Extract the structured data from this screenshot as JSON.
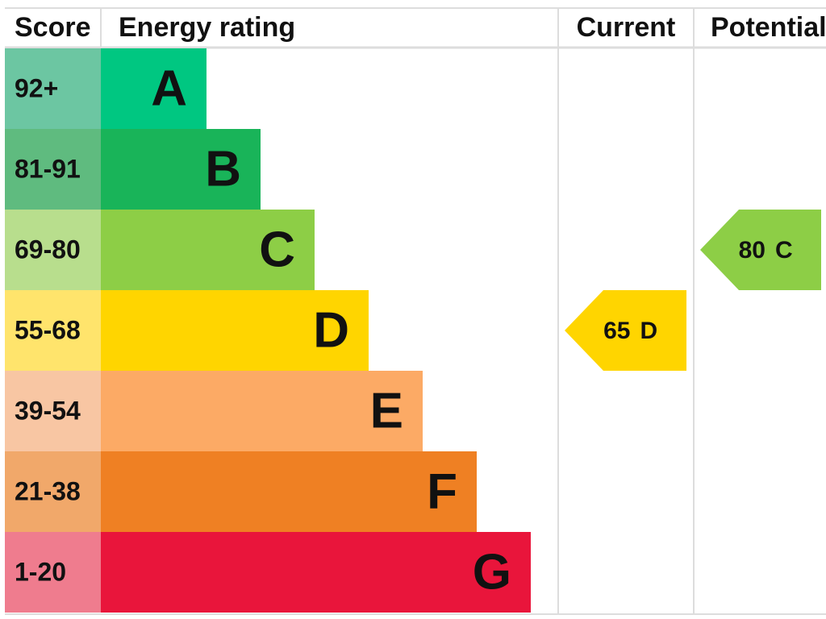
{
  "header": {
    "score": "Score",
    "rating": "Energy rating",
    "current": "Current",
    "potential": "Potential"
  },
  "bands": [
    {
      "score": "92+",
      "letter": "A",
      "color": "#00c781",
      "light": "#6cc6a2"
    },
    {
      "score": "81-91",
      "letter": "B",
      "color": "#19b459",
      "light": "#5fbb7f"
    },
    {
      "score": "69-80",
      "letter": "C",
      "color": "#8dce46",
      "light": "#b8de8d"
    },
    {
      "score": "55-68",
      "letter": "D",
      "color": "#ffd500",
      "light": "#ffe46c"
    },
    {
      "score": "39-54",
      "letter": "E",
      "color": "#fcaa65",
      "light": "#f8c6a3"
    },
    {
      "score": "21-38",
      "letter": "F",
      "color": "#ef8023",
      "light": "#f1a86a"
    },
    {
      "score": "1-20",
      "letter": "G",
      "color": "#e9153b",
      "light": "#ef7c8e"
    }
  ],
  "current": {
    "score": 65,
    "letter": "D"
  },
  "potential": {
    "score": 80,
    "letter": "C"
  }
}
